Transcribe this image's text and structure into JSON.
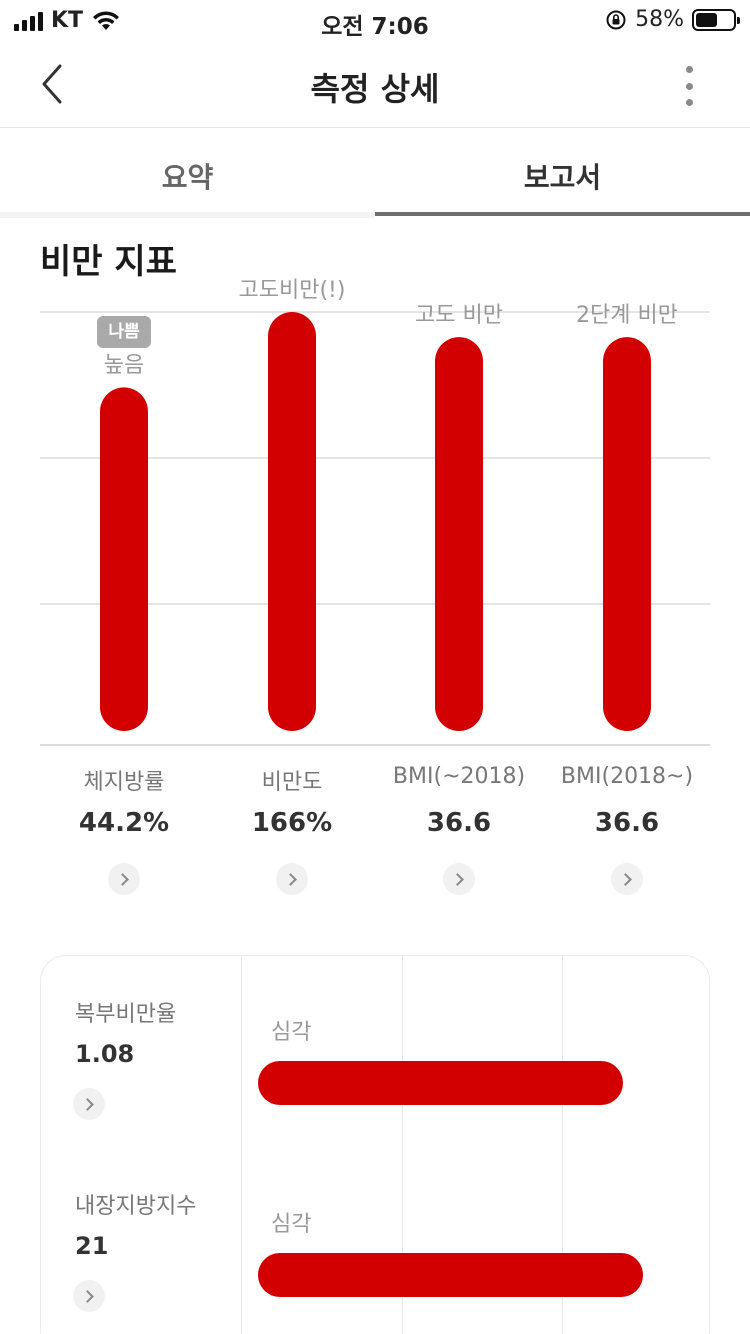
{
  "status_bar": {
    "carrier": "KT",
    "time": "오전 7:06",
    "battery": "58%",
    "battery_level": 0.58
  },
  "header": {
    "title": "측정 상세",
    "back_icon": "chevron-left-icon",
    "more_icon": "more-vertical-icon"
  },
  "tabs": [
    {
      "label": "요약",
      "active": false
    },
    {
      "label": "보고서",
      "active": true
    }
  ],
  "obesity_section": {
    "title": "비만 지표",
    "metrics": [
      {
        "name": "체지방률",
        "value": "44.2%",
        "status": "높음",
        "badge": "나쁨",
        "level": 0.82
      },
      {
        "name": "비만도",
        "value": "166%",
        "status": "고도비만(!)",
        "badge": "",
        "level": 1.0
      },
      {
        "name": "BMI(~2018)",
        "value": "36.6",
        "status": "고도 비만",
        "badge": "",
        "level": 0.94
      },
      {
        "name": "BMI(2018~)",
        "value": "36.6",
        "status": "2단계 비만",
        "badge": "",
        "level": 0.94
      }
    ],
    "bar_color": "#d20000"
  },
  "detail_card": {
    "rows": [
      {
        "name": "복부비만율",
        "value": "1.08",
        "level_label": "심각",
        "level": 0.92
      },
      {
        "name": "내장지방지수",
        "value": "21",
        "level_label": "심각",
        "level": 0.97
      }
    ]
  }
}
